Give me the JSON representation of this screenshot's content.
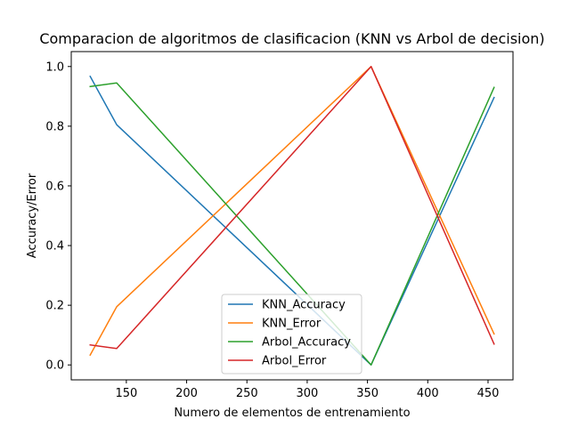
{
  "chart_data": {
    "type": "line",
    "title": "Comparacion de algoritmos de clasificacion (KNN vs Arbol de decision)",
    "xlabel": "Numero de elementos de entrenamiento",
    "ylabel": "Accuracy/Error",
    "x": [
      120,
      142,
      353,
      455
    ],
    "xlim": [
      104.3,
      470.7
    ],
    "ylim": [
      -0.05,
      1.05
    ],
    "xticks": [
      150,
      200,
      250,
      300,
      350,
      400,
      450
    ],
    "yticks": [
      0.0,
      0.2,
      0.4,
      0.6,
      0.8,
      1.0
    ],
    "xtick_labels": [
      "150",
      "200",
      "250",
      "300",
      "350",
      "400",
      "450"
    ],
    "ytick_labels": [
      "0.0",
      "0.2",
      "0.4",
      "0.6",
      "0.8",
      "1.0"
    ],
    "grid": false,
    "legend_position": "lower-center",
    "series": [
      {
        "name": "KNN_Accuracy",
        "color": "#1f77b4",
        "values": [
          0.967,
          0.805,
          0.0,
          0.896
        ]
      },
      {
        "name": "KNN_Error",
        "color": "#ff7f0e",
        "values": [
          0.033,
          0.195,
          1.0,
          0.104
        ]
      },
      {
        "name": "Arbol_Accuracy",
        "color": "#2ca02c",
        "values": [
          0.933,
          0.945,
          0.0,
          0.93
        ]
      },
      {
        "name": "Arbol_Error",
        "color": "#d62728",
        "values": [
          0.067,
          0.055,
          1.0,
          0.07
        ]
      }
    ]
  }
}
